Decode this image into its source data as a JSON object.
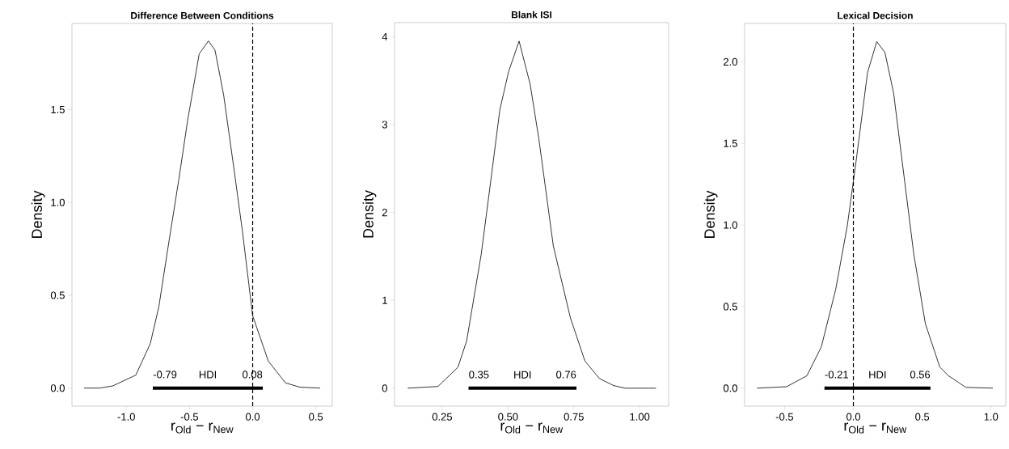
{
  "chart_data": [
    {
      "type": "line",
      "title": "Difference Between Conditions",
      "xlabel": "r$_{Old}$ − r$_{New}$",
      "ylabel": "Density",
      "xlim": [
        -1.43,
        0.63
      ],
      "ylim": [
        -0.097,
        1.964
      ],
      "xticks": [
        {
          "value": -1.0,
          "label": "-1.0"
        },
        -0.5,
        {
          "value": 0.0,
          "label": "0.0"
        },
        0.5
      ],
      "yticks": [
        {
          "value": 0.0,
          "label": "0.0"
        },
        0.5,
        {
          "value": 1.0,
          "label": "1.0"
        },
        1.5
      ],
      "grid": false,
      "marker": "none",
      "series": [
        {
          "color": "#000000",
          "x": [
            -1.335,
            -1.21,
            -1.107,
            -0.925,
            -0.81,
            -0.742,
            -0.674,
            -0.583,
            -0.515,
            -0.423,
            -0.35,
            -0.298,
            -0.23,
            -0.15,
            -0.082,
            0.0,
            0.124,
            0.26,
            0.374,
            0.534
          ],
          "values": [
            0,
            0,
            0.012,
            0.07,
            0.24,
            0.44,
            0.74,
            1.13,
            1.44,
            1.8,
            1.87,
            1.82,
            1.58,
            1.19,
            0.85,
            0.39,
            0.145,
            0.028,
            0.005,
            0
          ]
        },
        {
          "color": "#000000",
          "x": [
            -0.79,
            0.08
          ],
          "values": [
            0,
            0
          ]
        }
      ],
      "ref_lines": [
        {
          "axis": "x",
          "value": 0,
          "line_style": "dashed",
          "color": "#000000"
        }
      ],
      "annotations": [
        "-0.79",
        "HDI",
        "0.08"
      ]
    },
    {
      "type": "line",
      "title": "Blank ISI",
      "xlabel": "r$_{Old}$ − r$_{New}$",
      "ylabel": "Density",
      "xlim": [
        0.069,
        1.11
      ],
      "ylim": [
        -0.204,
        4.16
      ],
      "xticks": [
        0.25,
        {
          "value": 0.5,
          "label": "0.50"
        },
        0.75,
        {
          "value": 1.0,
          "label": "1.00"
        }
      ],
      "yticks": [
        0,
        1,
        2,
        3,
        4
      ],
      "grid": false,
      "marker": "none",
      "series": [
        {
          "color": "#000000",
          "x": [
            0.119,
            0.234,
            0.31,
            0.343,
            0.398,
            0.431,
            0.469,
            0.502,
            0.542,
            0.584,
            0.617,
            0.672,
            0.737,
            0.792,
            0.847,
            0.901,
            0.945,
            1.062
          ],
          "values": [
            0,
            0.02,
            0.24,
            0.54,
            1.52,
            2.28,
            3.17,
            3.6,
            3.95,
            3.46,
            2.84,
            1.62,
            0.8,
            0.31,
            0.11,
            0.03,
            0,
            0
          ]
        },
        {
          "color": "#000000",
          "x": [
            0.35,
            0.76
          ],
          "values": [
            0,
            0
          ]
        }
      ],
      "annotations": [
        "0.35",
        "HDI",
        "0.76"
      ]
    },
    {
      "type": "line",
      "title": "Lexical Decision",
      "xlabel": "r$_{Old}$ − r$_{New}$",
      "ylabel": "Density",
      "xlim": [
        -0.79,
        1.107
      ],
      "ylim": [
        -0.11,
        2.235
      ],
      "xticks": [
        -0.5,
        {
          "value": 0.0,
          "label": "0.0"
        },
        0.5,
        {
          "value": 1.0,
          "label": "1.0"
        }
      ],
      "yticks": [
        {
          "value": 0.0,
          "label": "0.0"
        },
        0.5,
        {
          "value": 1.0,
          "label": "1.0"
        },
        1.5,
        {
          "value": 2.0,
          "label": "2.0"
        }
      ],
      "grid": false,
      "marker": "none",
      "series": [
        {
          "color": "#000000",
          "x": [
            -0.7,
            -0.485,
            -0.338,
            -0.233,
            -0.128,
            -0.044,
            0.019,
            0.103,
            0.17,
            0.229,
            0.292,
            0.355,
            0.439,
            0.523,
            0.628,
            0.691,
            0.817,
            1.013
          ],
          "values": [
            0,
            0.009,
            0.076,
            0.253,
            0.607,
            0.996,
            1.386,
            1.935,
            2.124,
            2.058,
            1.81,
            1.386,
            0.82,
            0.395,
            0.129,
            0.076,
            0.005,
            0
          ]
        },
        {
          "color": "#000000",
          "x": [
            -0.21,
            0.56
          ],
          "values": [
            0,
            0
          ]
        }
      ],
      "ref_lines": [
        {
          "axis": "x",
          "value": 0,
          "line_style": "dashed",
          "color": "#000000"
        }
      ],
      "annotations": [
        "-0.21",
        "HDI",
        "0.56"
      ]
    }
  ]
}
